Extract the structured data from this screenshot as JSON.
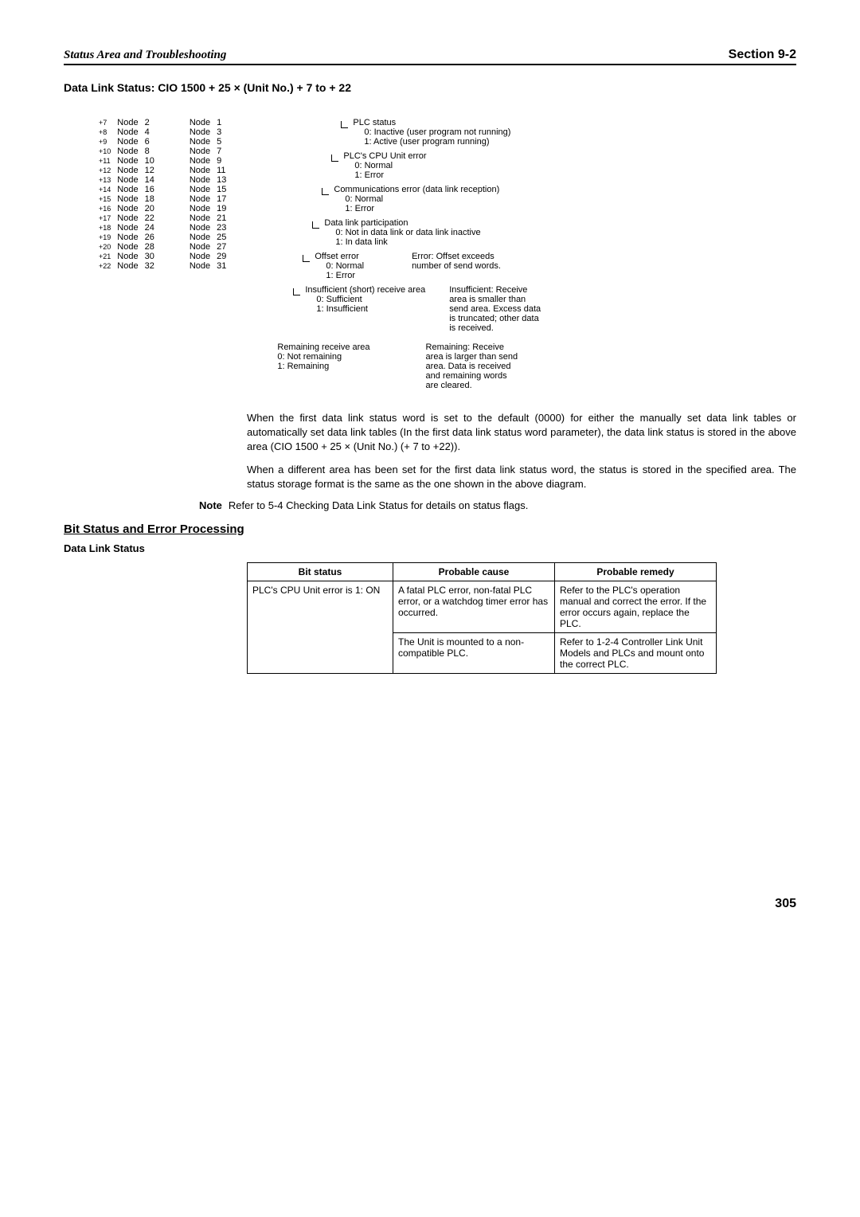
{
  "header": {
    "left": "Status Area and Troubleshooting",
    "right": "Section 9-2"
  },
  "section_title": "Data Link Status: CIO 1500 + 25 × (Unit No.) + 7 to + 22",
  "node_rows": [
    {
      "offset": "+7",
      "nl": "Node",
      "ln": "2",
      "nr": "Node",
      "rn": "1"
    },
    {
      "offset": "+8",
      "nl": "Node",
      "ln": "4",
      "nr": "Node",
      "rn": "3"
    },
    {
      "offset": "+9",
      "nl": "Node",
      "ln": "6",
      "nr": "Node",
      "rn": "5"
    },
    {
      "offset": "+10",
      "nl": "Node",
      "ln": "8",
      "nr": "Node",
      "rn": "7"
    },
    {
      "offset": "+11",
      "nl": "Node",
      "ln": "10",
      "nr": "Node",
      "rn": "9"
    },
    {
      "offset": "+12",
      "nl": "Node",
      "ln": "12",
      "nr": "Node",
      "rn": "11"
    },
    {
      "offset": "+13",
      "nl": "Node",
      "ln": "14",
      "nr": "Node",
      "rn": "13"
    },
    {
      "offset": "+14",
      "nl": "Node",
      "ln": "16",
      "nr": "Node",
      "rn": "15"
    },
    {
      "offset": "+15",
      "nl": "Node",
      "ln": "18",
      "nr": "Node",
      "rn": "17"
    },
    {
      "offset": "+16",
      "nl": "Node",
      "ln": "20",
      "nr": "Node",
      "rn": "19"
    },
    {
      "offset": "+17",
      "nl": "Node",
      "ln": "22",
      "nr": "Node",
      "rn": "21"
    },
    {
      "offset": "+18",
      "nl": "Node",
      "ln": "24",
      "nr": "Node",
      "rn": "23"
    },
    {
      "offset": "+19",
      "nl": "Node",
      "ln": "26",
      "nr": "Node",
      "rn": "25"
    },
    {
      "offset": "+20",
      "nl": "Node",
      "ln": "28",
      "nr": "Node",
      "rn": "27"
    },
    {
      "offset": "+21",
      "nl": "Node",
      "ln": "30",
      "nr": "Node",
      "rn": "29"
    },
    {
      "offset": "+22",
      "nl": "Node",
      "ln": "32",
      "nr": "Node",
      "rn": "31"
    }
  ],
  "bits": {
    "plc_status": {
      "title": "PLC status",
      "s0": "0: Inactive (user program not running)",
      "s1": "1: Active (user program running)"
    },
    "cpu_err": {
      "title": "PLC's CPU Unit error",
      "s0": "0: Normal",
      "s1": "1: Error"
    },
    "comm_err": {
      "title": "Communications error (data link reception)",
      "s0": "0: Normal",
      "s1": "1: Error"
    },
    "dl_part": {
      "title": "Data link participation",
      "s0": "0: Not in data link or data link inactive",
      "s1": "1: In data link"
    },
    "offset_err": {
      "title": "Offset error",
      "s0": "0: Normal",
      "s1": "1: Error",
      "desc1": "Error: Offset exceeds",
      "desc2": "number of send words."
    },
    "insuf": {
      "title": "Insufficient (short) receive area",
      "s0": "0: Sufficient",
      "s1": "1: Insufficient",
      "desc1": "Insufficient: Receive",
      "desc2": "area is smaller than",
      "desc3": "send area. Excess data",
      "desc4": "is truncated; other data",
      "desc5": "is received."
    },
    "remain": {
      "title": "Remaining receive area",
      "s0": "0: Not remaining",
      "s1": "1: Remaining",
      "desc1": "Remaining: Receive",
      "desc2": "area is larger than send",
      "desc3": "area. Data is received",
      "desc4": "and remaining words",
      "desc5": "are cleared."
    }
  },
  "body": {
    "p1": "When the first data link status word is set to the default (0000) for either the manually set data link tables or automatically set data link tables (In the first data link status word parameter), the data link status is stored in the above area (CIO 1500 + 25 × (Unit No.) (+ 7 to +22)).",
    "p2": "When a different area has been set for the first data link status word, the status is stored in the specified area. The status storage format is the same as the one shown in the above diagram."
  },
  "note": {
    "label": "Note",
    "text": "Refer to 5-4 Checking Data Link Status for details on status flags."
  },
  "subsection": "Bit Status and Error Processing",
  "dls_title": "Data Link Status",
  "table": {
    "h1": "Bit status",
    "h2": "Probable cause",
    "h3": "Probable remedy",
    "r1c1": "PLC's CPU Unit error is 1: ON",
    "r1c2": "A fatal PLC error, non-fatal PLC error, or a watchdog timer error has occurred.",
    "r1c3": "Refer to the PLC's operation manual and correct the error. If the error occurs again, replace the PLC.",
    "r2c2": "The Unit is mounted to a non-compatible PLC.",
    "r2c3": "Refer to 1-2-4 Controller Link Unit Models and PLCs and mount onto the correct PLC."
  },
  "page_num": "305"
}
